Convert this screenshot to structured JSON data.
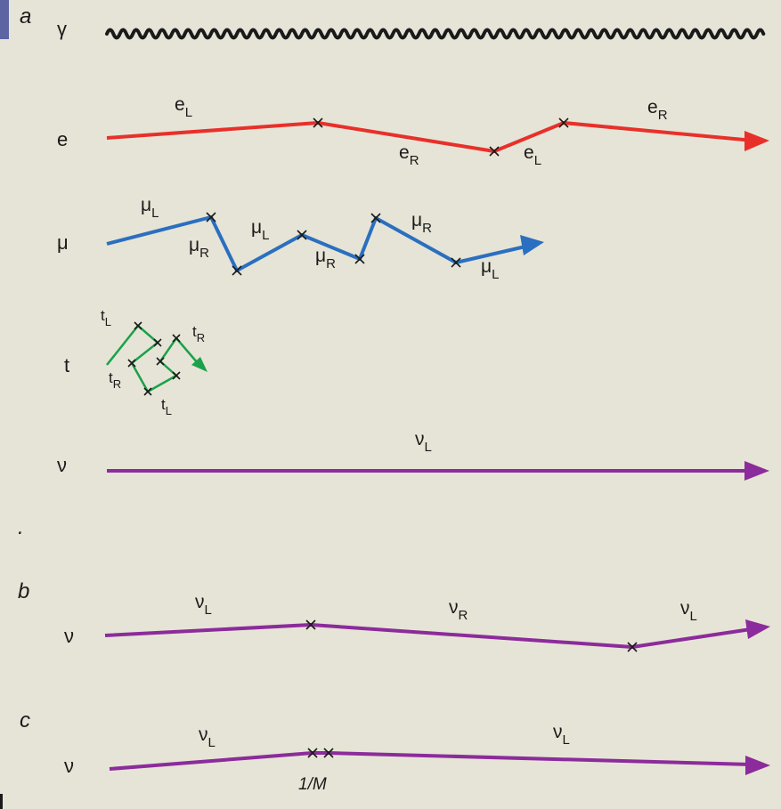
{
  "colors": {
    "background": "#e6e4d6",
    "photon": "#1a1a1a",
    "electron": "#e8302a",
    "muon": "#2a6fc0",
    "tau": "#1ba14a",
    "neutrino": "#8c2b9b",
    "tab": "#5d64a2"
  },
  "panels": {
    "a": "a",
    "b": "b",
    "c": "c",
    "dot": "."
  },
  "rows": {
    "photon": "γ",
    "electron": "e",
    "muon": "μ",
    "tau": "t",
    "neutrino": "ν",
    "neutrino_b": "ν",
    "neutrino_c": "ν"
  },
  "labels": {
    "e_1": {
      "base": "e",
      "sub": "L"
    },
    "e_2": {
      "base": "e",
      "sub": "R"
    },
    "e_3": {
      "base": "e",
      "sub": "L"
    },
    "e_4": {
      "base": "e",
      "sub": "R"
    },
    "mu_1": {
      "base": "μ",
      "sub": "L"
    },
    "mu_2": {
      "base": "μ",
      "sub": "R"
    },
    "mu_3": {
      "base": "μ",
      "sub": "L"
    },
    "mu_4": {
      "base": "μ",
      "sub": "R"
    },
    "mu_5": {
      "base": "μ",
      "sub": "R"
    },
    "mu_6": {
      "base": "μ",
      "sub": "L"
    },
    "t_1": {
      "base": "t",
      "sub": "L"
    },
    "t_2": {
      "base": "t",
      "sub": "R"
    },
    "t_3": {
      "base": "t",
      "sub": "R"
    },
    "t_4": {
      "base": "t",
      "sub": "L"
    },
    "nu_a": {
      "base": "ν",
      "sub": "L"
    },
    "nu_b1": {
      "base": "ν",
      "sub": "L"
    },
    "nu_b2": {
      "base": "ν",
      "sub": "R"
    },
    "nu_b3": {
      "base": "ν",
      "sub": "L"
    },
    "nu_c1": {
      "base": "ν",
      "sub": "L"
    },
    "nu_c2": {
      "base": "ν",
      "sub": "L"
    }
  },
  "mass_label": "1/M"
}
